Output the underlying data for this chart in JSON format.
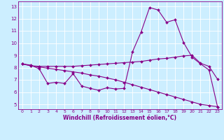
{
  "xlabel": "Windchill (Refroidissement éolien,°C)",
  "xlim": [
    -0.5,
    23.5
  ],
  "ylim": [
    4.6,
    13.4
  ],
  "yticks": [
    5,
    6,
    7,
    8,
    9,
    10,
    11,
    12,
    13
  ],
  "xticks": [
    0,
    1,
    2,
    3,
    4,
    5,
    6,
    7,
    8,
    9,
    10,
    11,
    12,
    13,
    14,
    15,
    16,
    17,
    18,
    19,
    20,
    21,
    22,
    23
  ],
  "background_color": "#cceeff",
  "line_color": "#880088",
  "line1_x": [
    0,
    1,
    2,
    3,
    4,
    5,
    6,
    7,
    8,
    9,
    10,
    11,
    12,
    13,
    14,
    15,
    16,
    17,
    18,
    19,
    20,
    21,
    22,
    23
  ],
  "line1_y": [
    8.3,
    8.2,
    7.9,
    6.7,
    6.8,
    6.7,
    7.5,
    6.5,
    6.3,
    6.15,
    6.35,
    6.25,
    6.3,
    9.3,
    10.9,
    12.9,
    12.7,
    11.7,
    11.9,
    10.05,
    8.85,
    8.3,
    7.8,
    4.8
  ],
  "line2_x": [
    0,
    1,
    2,
    3,
    4,
    5,
    6,
    7,
    8,
    9,
    10,
    11,
    12,
    13,
    14,
    15,
    16,
    17,
    18,
    19,
    20,
    21,
    22,
    23
  ],
  "line2_y": [
    8.3,
    8.15,
    8.1,
    8.1,
    8.1,
    8.1,
    8.1,
    8.15,
    8.2,
    8.25,
    8.3,
    8.35,
    8.4,
    8.45,
    8.5,
    8.6,
    8.7,
    8.75,
    8.85,
    8.95,
    9.0,
    8.35,
    8.1,
    7.05
  ],
  "line3_x": [
    0,
    1,
    2,
    3,
    4,
    5,
    6,
    7,
    8,
    9,
    10,
    11,
    12,
    13,
    14,
    15,
    16,
    17,
    18,
    19,
    20,
    21,
    22,
    23
  ],
  "line3_y": [
    8.3,
    8.15,
    8.05,
    7.95,
    7.85,
    7.75,
    7.65,
    7.55,
    7.4,
    7.3,
    7.15,
    7.0,
    6.8,
    6.6,
    6.4,
    6.2,
    6.0,
    5.8,
    5.6,
    5.4,
    5.2,
    5.0,
    4.9,
    4.8
  ],
  "tick_fontsize_x": 4.5,
  "tick_fontsize_y": 5.0,
  "xlabel_fontsize": 5.5,
  "linewidth": 0.8,
  "markersize": 2.0
}
